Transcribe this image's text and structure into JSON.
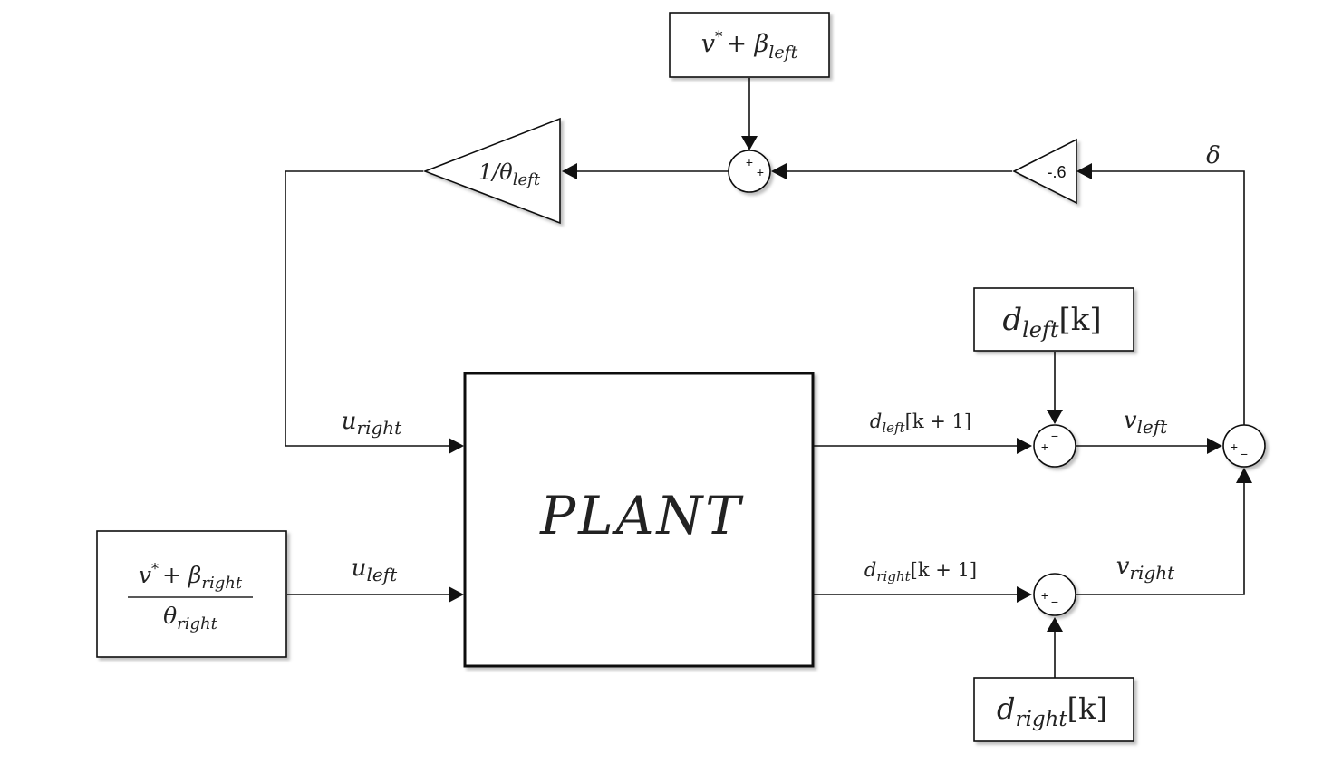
{
  "blocks": {
    "top_source": {
      "base": "v",
      "sup": "*",
      "op": "+ β",
      "sub": "left"
    },
    "gain_inverse": {
      "pre": "1/θ",
      "sub": "left"
    },
    "gain_neg": {
      "label": "-.6"
    },
    "plant": {
      "label": "PLANT"
    },
    "d_left_source": {
      "base": "d",
      "sub": "left",
      "suffix": "[k]"
    },
    "d_right_source": {
      "base": "d",
      "sub": "right",
      "suffix": "[k]"
    },
    "right_source": {
      "num_base": "v",
      "num_sup": "*",
      "num_op": "+ β",
      "num_sub": "right",
      "den_base": "θ",
      "den_sub": "right"
    }
  },
  "sums": {
    "top": {
      "signs": [
        "+",
        "+"
      ]
    },
    "left_error": {
      "signs": [
        "+",
        "−"
      ]
    },
    "right_error": {
      "signs": [
        "+",
        "−"
      ]
    },
    "diff": {
      "signs": [
        "+",
        "−"
      ]
    }
  },
  "signals": {
    "delta": "δ",
    "u_right": {
      "base": "u",
      "sub": "right"
    },
    "u_left": {
      "base": "u",
      "sub": "left"
    },
    "d_left_next": {
      "base": "d",
      "sub": "left",
      "suffix": "[k + 1]"
    },
    "d_right_next": {
      "base": "d",
      "sub": "right",
      "suffix": "[k + 1]"
    },
    "v_left": {
      "base": "v",
      "sub": "left"
    },
    "v_right": {
      "base": "v",
      "sub": "right"
    }
  }
}
